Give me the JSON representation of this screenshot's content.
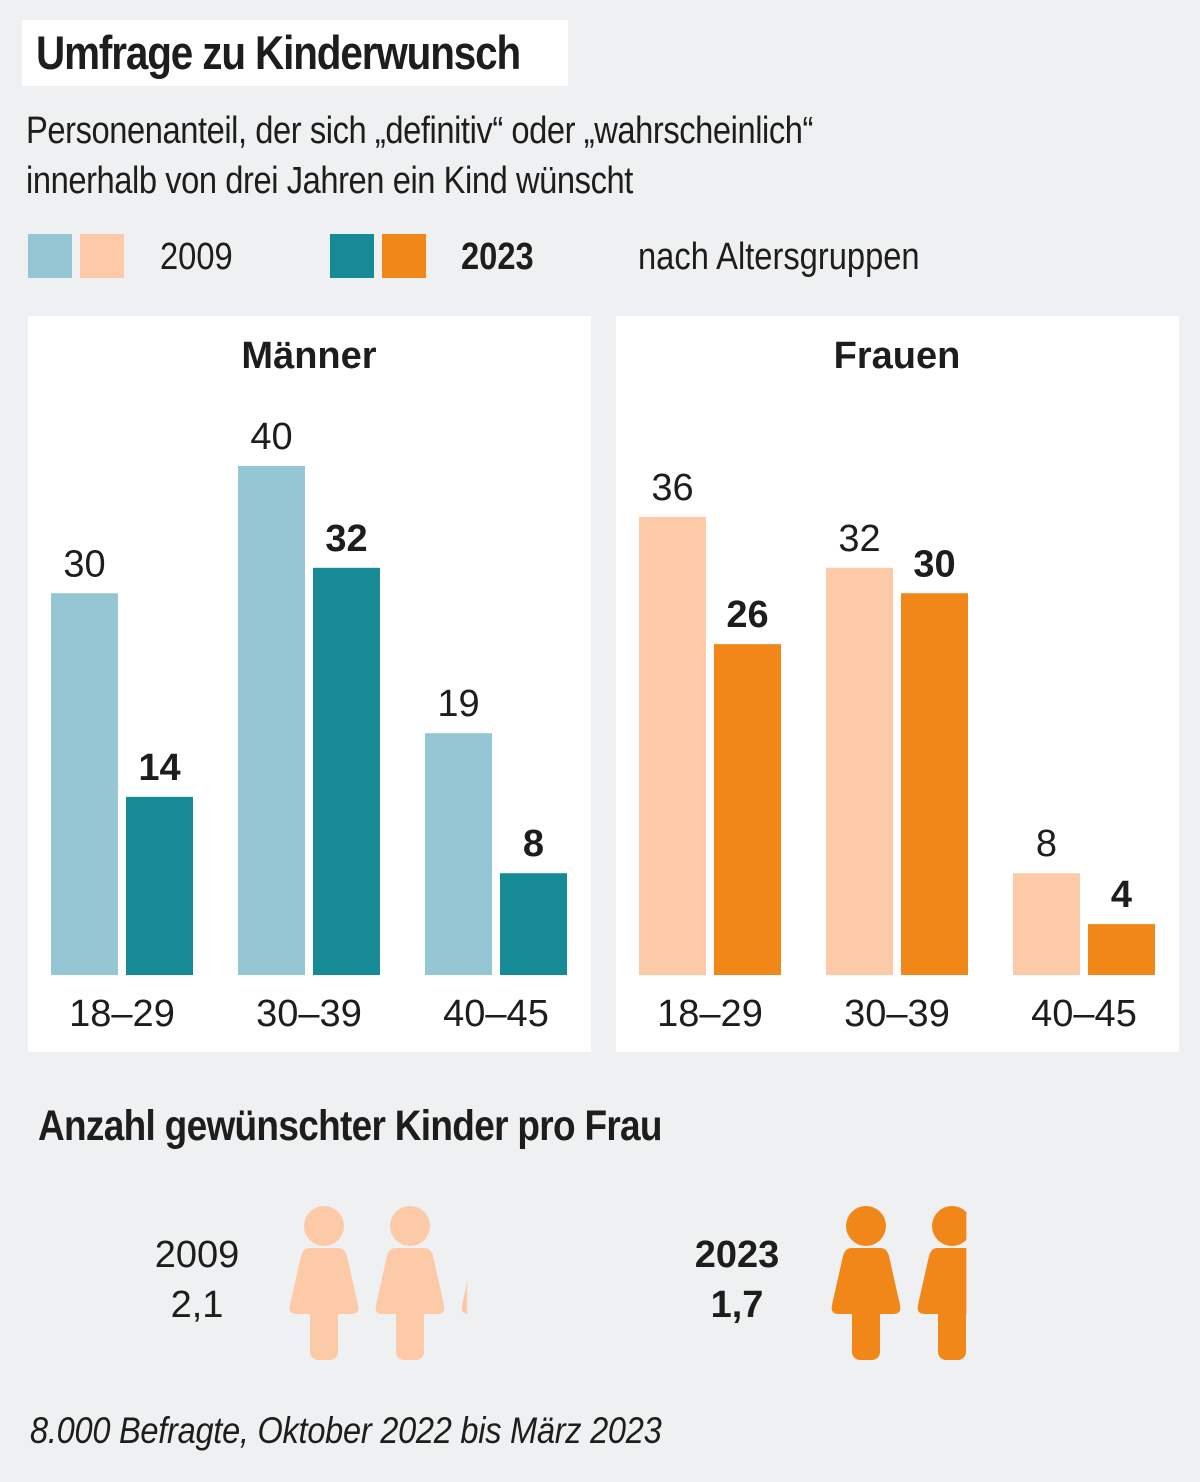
{
  "title": "Umfrage zu Kinderwunsch",
  "subtitle_line1": "Personenanteil, der sich „definitiv“ oder „wahrscheinlich“",
  "subtitle_line2": "innerhalb von drei Jahren ein Kind wünscht",
  "legend": {
    "year_2009": "2009",
    "year_2023": "2023",
    "grouping": "nach Altersgruppen"
  },
  "colors": {
    "men_2009": "#94c6d3",
    "men_2023": "#168b96",
    "women_2009": "#fdcaa7",
    "women_2023": "#f18719"
  },
  "chart_data": [
    {
      "type": "bar",
      "title": "Männer",
      "categories": [
        "18–29",
        "30–39",
        "40–45"
      ],
      "series": [
        {
          "name": "2009",
          "values": [
            30,
            40,
            19
          ]
        },
        {
          "name": "2023",
          "values": [
            14,
            32,
            8
          ]
        }
      ],
      "ylim": [
        0,
        40
      ]
    },
    {
      "type": "bar",
      "title": "Frauen",
      "categories": [
        "18–29",
        "30–39",
        "40–45"
      ],
      "series": [
        {
          "name": "2009",
          "values": [
            36,
            32,
            8
          ]
        },
        {
          "name": "2023",
          "values": [
            26,
            30,
            4
          ]
        }
      ],
      "ylim": [
        0,
        40
      ]
    }
  ],
  "kids": {
    "title": "Anzahl gewünschter Kinder pro Frau",
    "items": [
      {
        "year": "2009",
        "value_label": "2,1",
        "value": 2.1
      },
      {
        "year": "2023",
        "value_label": "1,7",
        "value": 1.7
      }
    ]
  },
  "footnote": "8.000 Befragte, Oktober 2022 bis März 2023"
}
